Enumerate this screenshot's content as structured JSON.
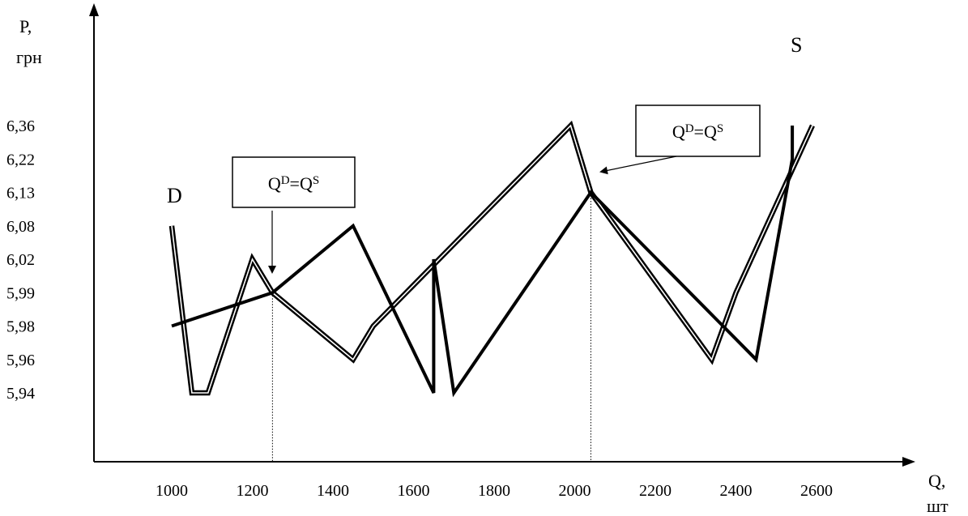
{
  "chart_data": {
    "type": "line",
    "title": "",
    "y_axis_title": [
      "P,",
      "грн"
    ],
    "x_axis_title": [
      "Q,",
      "шт"
    ],
    "x_ticks": [
      "1000",
      "1200",
      "1400",
      "1600",
      "1800",
      "2000",
      "2200",
      "2400",
      "2600"
    ],
    "y_ticks": [
      "6,36",
      "6,22",
      "6,13",
      "6,08",
      "6,02",
      "5,99",
      "5,98",
      "5,96",
      "5,94"
    ],
    "series": [
      {
        "name": "D",
        "style": "double",
        "points": [
          {
            "x": 1000,
            "y": "6,08"
          },
          {
            "x": 1050,
            "y": "5,94"
          },
          {
            "x": 1090,
            "y": "5,94"
          },
          {
            "x": 1200,
            "y": "6,02"
          },
          {
            "x": 1250,
            "y": "5,99"
          },
          {
            "x": 1450,
            "y": "5,96"
          },
          {
            "x": 1500,
            "y": "5,98"
          },
          {
            "x": 1990,
            "y": "6,36"
          },
          {
            "x": 2040,
            "y": "6,13"
          },
          {
            "x": 2340,
            "y": "5,96"
          },
          {
            "x": 2400,
            "y": "5,99"
          },
          {
            "x": 2590,
            "y": "6,36"
          }
        ]
      },
      {
        "name": "S",
        "style": "single",
        "points": [
          {
            "x": 1000,
            "y": "5,98"
          },
          {
            "x": 1250,
            "y": "5,99"
          },
          {
            "x": 1450,
            "y": "6,08"
          },
          {
            "x": 1650,
            "y": "5,94"
          },
          {
            "x": 1650,
            "y": "6,02"
          },
          {
            "x": 1700,
            "y": "5,94"
          },
          {
            "x": 2040,
            "y": "6,13"
          },
          {
            "x": 2450,
            "y": "5,96"
          },
          {
            "x": 2540,
            "y": "6,22"
          },
          {
            "x": 2540,
            "y": "6,36"
          }
        ]
      }
    ],
    "annotations": [
      {
        "text": "Q",
        "sup1": "D",
        "eq": "=Q",
        "sup2": "S",
        "x": 1250,
        "y": "5,99"
      },
      {
        "text": "Q",
        "sup1": "D",
        "eq": "=Q",
        "sup2": "S",
        "x": 2040,
        "y": "6,13"
      }
    ]
  }
}
